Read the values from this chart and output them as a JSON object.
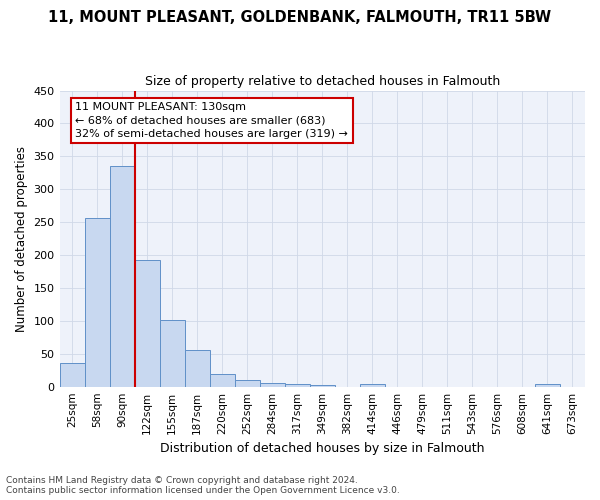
{
  "title": "11, MOUNT PLEASANT, GOLDENBANK, FALMOUTH, TR11 5BW",
  "subtitle": "Size of property relative to detached houses in Falmouth",
  "xlabel": "Distribution of detached houses by size in Falmouth",
  "ylabel": "Number of detached properties",
  "bar_color": "#c8d8f0",
  "bar_edge_color": "#6090c8",
  "background_color": "#eef2fa",
  "grid_color": "#d0d8e8",
  "categories": [
    "25sqm",
    "58sqm",
    "90sqm",
    "122sqm",
    "155sqm",
    "187sqm",
    "220sqm",
    "252sqm",
    "284sqm",
    "317sqm",
    "349sqm",
    "382sqm",
    "414sqm",
    "446sqm",
    "479sqm",
    "511sqm",
    "543sqm",
    "576sqm",
    "608sqm",
    "641sqm",
    "673sqm"
  ],
  "values": [
    36,
    256,
    335,
    193,
    102,
    55,
    20,
    10,
    6,
    4,
    2,
    0,
    4,
    0,
    0,
    0,
    0,
    0,
    0,
    4,
    0
  ],
  "annotation_line1": "11 MOUNT PLEASANT: 130sqm",
  "annotation_line2": "← 68% of detached houses are smaller (683)",
  "annotation_line3": "32% of semi-detached houses are larger (319) →",
  "vline_color": "#cc0000",
  "annotation_box_facecolor": "#ffffff",
  "annotation_box_edgecolor": "#cc0000",
  "ylim": [
    0,
    450
  ],
  "yticks": [
    0,
    50,
    100,
    150,
    200,
    250,
    300,
    350,
    400,
    450
  ],
  "footer1": "Contains HM Land Registry data © Crown copyright and database right 2024.",
  "footer2": "Contains public sector information licensed under the Open Government Licence v3.0.",
  "title_fontsize": 10.5,
  "subtitle_fontsize": 9,
  "ylabel_fontsize": 8.5,
  "xlabel_fontsize": 9,
  "tick_fontsize": 7.5,
  "footer_fontsize": 6.5,
  "annot_fontsize": 8
}
